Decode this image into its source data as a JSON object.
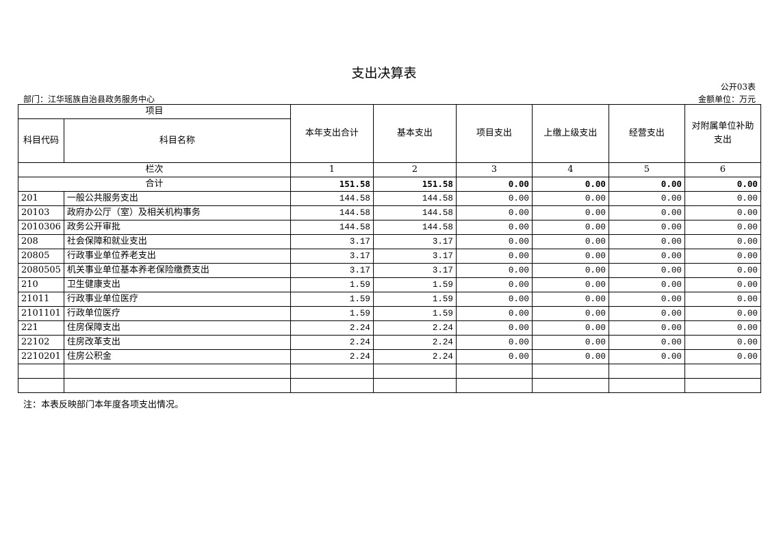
{
  "title": "支出决算表",
  "form_no": "公开03表",
  "department": "部门：江华瑶族自治县政务服务中心",
  "unit": "金额单位：万元",
  "headers": {
    "project": "项目",
    "code": "科目代码",
    "name": "科目名称",
    "columns": [
      "本年支出合计",
      "基本支出",
      "项目支出",
      "上缴上级支出",
      "经营支出",
      "对附属单位补助支出"
    ],
    "row_index_label": "栏次",
    "row_index": [
      "1",
      "2",
      "3",
      "4",
      "5",
      "6"
    ]
  },
  "total": {
    "label": "合计",
    "values": [
      "151.58",
      "151.58",
      "0.00",
      "0.00",
      "0.00",
      "0.00"
    ]
  },
  "rows": [
    {
      "code": "201",
      "name": "一般公共服务支出",
      "values": [
        "144.58",
        "144.58",
        "0.00",
        "0.00",
        "0.00",
        "0.00"
      ]
    },
    {
      "code": "20103",
      "name": "政府办公厅（室）及相关机构事务",
      "values": [
        "144.58",
        "144.58",
        "0.00",
        "0.00",
        "0.00",
        "0.00"
      ]
    },
    {
      "code": "2010306",
      "name": "政务公开审批",
      "values": [
        "144.58",
        "144.58",
        "0.00",
        "0.00",
        "0.00",
        "0.00"
      ]
    },
    {
      "code": "208",
      "name": "社会保障和就业支出",
      "values": [
        "3.17",
        "3.17",
        "0.00",
        "0.00",
        "0.00",
        "0.00"
      ]
    },
    {
      "code": "20805",
      "name": "行政事业单位养老支出",
      "values": [
        "3.17",
        "3.17",
        "0.00",
        "0.00",
        "0.00",
        "0.00"
      ]
    },
    {
      "code": "2080505",
      "name": "机关事业单位基本养老保险缴费支出",
      "values": [
        "3.17",
        "3.17",
        "0.00",
        "0.00",
        "0.00",
        "0.00"
      ]
    },
    {
      "code": "210",
      "name": "卫生健康支出",
      "values": [
        "1.59",
        "1.59",
        "0.00",
        "0.00",
        "0.00",
        "0.00"
      ]
    },
    {
      "code": "21011",
      "name": "行政事业单位医疗",
      "values": [
        "1.59",
        "1.59",
        "0.00",
        "0.00",
        "0.00",
        "0.00"
      ]
    },
    {
      "code": "2101101",
      "name": "行政单位医疗",
      "values": [
        "1.59",
        "1.59",
        "0.00",
        "0.00",
        "0.00",
        "0.00"
      ]
    },
    {
      "code": "221",
      "name": "住房保障支出",
      "values": [
        "2.24",
        "2.24",
        "0.00",
        "0.00",
        "0.00",
        "0.00"
      ]
    },
    {
      "code": "22102",
      "name": "住房改革支出",
      "values": [
        "2.24",
        "2.24",
        "0.00",
        "0.00",
        "0.00",
        "0.00"
      ]
    },
    {
      "code": "2210201",
      "name": "住房公积金",
      "values": [
        "2.24",
        "2.24",
        "0.00",
        "0.00",
        "0.00",
        "0.00"
      ]
    }
  ],
  "empty_rows": 2,
  "note": "注：本表反映部门本年度各项支出情况。"
}
